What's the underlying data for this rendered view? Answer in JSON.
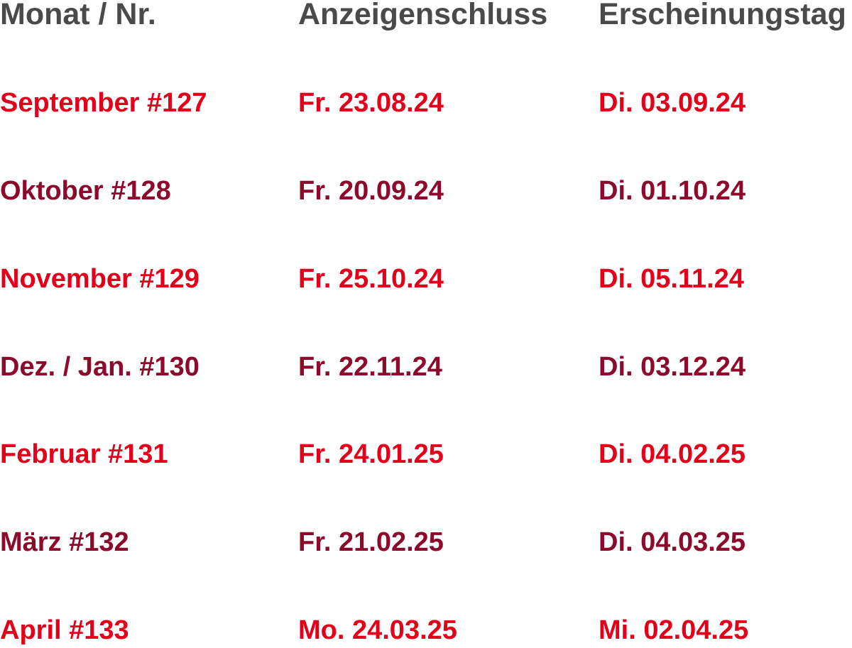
{
  "colors": {
    "header": "#4a4a4a",
    "accent_red": "#e2001a",
    "accent_dark_red": "#8c0a2a"
  },
  "table": {
    "headers": [
      "Monat / Nr.",
      "Anzeigenschluss",
      "Erscheinungstag"
    ],
    "rows": [
      [
        "September #127",
        "Fr. 23.08.24",
        "Di. 03.09.24"
      ],
      [
        "Oktober #128",
        "Fr. 20.09.24",
        "Di. 01.10.24"
      ],
      [
        "November #129",
        "Fr. 25.10.24",
        "Di. 05.11.24"
      ],
      [
        "Dez. / Jan. #130",
        "Fr. 22.11.24",
        "Di. 03.12.24"
      ],
      [
        "Februar #131",
        "Fr. 24.01.25",
        "Di. 04.02.25"
      ],
      [
        "März #132",
        "Fr. 21.02.25",
        "Di. 04.03.25"
      ],
      [
        "April #133",
        "Mo. 24.03.25",
        "Mi. 02.04.25"
      ]
    ]
  }
}
